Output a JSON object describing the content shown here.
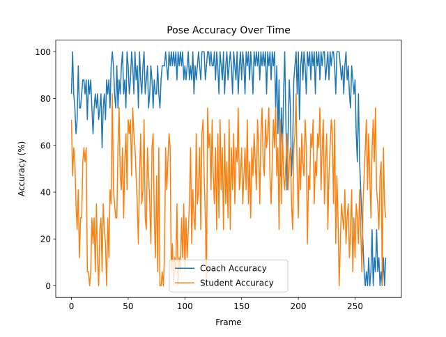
{
  "chart_data": {
    "type": "line",
    "title": "Pose Accuracy Over Time",
    "x_label": "Frame",
    "y_label": "Accuracy (%)",
    "x": [
      0,
      1,
      2,
      3,
      4,
      5,
      6,
      7,
      8,
      9,
      10,
      11,
      12,
      13,
      14,
      15,
      16,
      17,
      18,
      19,
      20,
      21,
      22,
      23,
      24,
      25,
      26,
      27,
      28,
      29,
      30,
      31,
      32,
      33,
      34,
      35,
      36,
      37,
      38,
      39,
      40,
      41,
      42,
      43,
      44,
      45,
      46,
      47,
      48,
      49,
      50,
      51,
      52,
      53,
      54,
      55,
      56,
      57,
      58,
      59,
      60,
      61,
      62,
      63,
      64,
      65,
      66,
      67,
      68,
      69,
      70,
      71,
      72,
      73,
      74,
      75,
      76,
      77,
      78,
      79,
      80,
      81,
      82,
      83,
      84,
      85,
      86,
      87,
      88,
      89,
      90,
      91,
      92,
      93,
      94,
      95,
      96,
      97,
      98,
      99,
      100,
      101,
      102,
      103,
      104,
      105,
      106,
      107,
      108,
      109,
      110,
      111,
      112,
      113,
      114,
      115,
      116,
      117,
      118,
      119,
      120,
      121,
      122,
      123,
      124,
      125,
      126,
      127,
      128,
      129,
      130,
      131,
      132,
      133,
      134,
      135,
      136,
      137,
      138,
      139,
      140,
      141,
      142,
      143,
      144,
      145,
      146,
      147,
      148,
      149,
      150,
      151,
      152,
      153,
      154,
      155,
      156,
      157,
      158,
      159,
      160,
      161,
      162,
      163,
      164,
      165,
      166,
      167,
      168,
      169,
      170,
      171,
      172,
      173,
      174,
      175,
      176,
      177,
      178,
      179,
      180,
      181,
      182,
      183,
      184,
      185,
      186,
      187,
      188,
      189,
      190,
      191,
      192,
      193,
      194,
      195,
      196,
      197,
      198,
      199,
      200,
      201,
      202,
      203,
      204,
      205,
      206,
      207,
      208,
      209,
      210,
      211,
      212,
      213,
      214,
      215,
      216,
      217,
      218,
      219,
      220,
      221,
      222,
      223,
      224,
      225,
      226,
      227,
      228,
      229,
      230,
      231,
      232,
      233,
      234,
      235,
      236,
      237,
      238,
      239,
      240,
      241,
      242,
      243,
      244,
      245,
      246,
      247,
      248,
      249,
      250,
      251,
      252,
      253,
      254,
      255,
      256,
      257,
      258,
      259,
      260,
      261,
      262,
      263,
      264,
      265,
      266,
      267,
      268,
      269,
      270,
      271,
      272,
      273,
      274,
      275,
      276,
      277
    ],
    "series": [
      {
        "name": "Coach Accuracy",
        "color": "#1f77b4",
        "values": [
          82,
          100,
          82,
          76,
          65,
          71,
          94,
          76,
          76,
          82,
          88,
          88,
          82,
          88,
          71,
          88,
          82,
          88,
          76,
          65,
          76,
          82,
          76,
          82,
          71,
          76,
          82,
          59,
          76,
          82,
          71,
          88,
          82,
          88,
          76,
          94,
          100,
          94,
          82,
          76,
          94,
          76,
          88,
          82,
          94,
          100,
          82,
          88,
          76,
          100,
          94,
          82,
          88,
          100,
          94,
          82,
          100,
          88,
          94,
          76,
          100,
          88,
          82,
          94,
          100,
          82,
          88,
          94,
          76,
          82,
          94,
          88,
          76,
          88,
          82,
          82,
          94,
          82,
          76,
          88,
          94,
          94,
          94,
          100,
          94,
          88,
          100,
          94,
          100,
          94,
          100,
          94,
          100,
          88,
          100,
          94,
          100,
          94,
          100,
          88,
          94,
          88,
          94,
          100,
          88,
          94,
          88,
          100,
          82,
          94,
          88,
          94,
          100,
          94,
          88,
          100,
          100,
          100,
          88,
          94,
          100,
          100,
          94,
          100,
          94,
          94,
          100,
          88,
          100,
          94,
          82,
          100,
          94,
          88,
          100,
          82,
          94,
          100,
          88,
          94,
          100,
          94,
          82,
          100,
          94,
          88,
          100,
          82,
          94,
          100,
          88,
          100,
          94,
          82,
          100,
          94,
          100,
          88,
          100,
          94,
          82,
          100,
          94,
          100,
          94,
          100,
          88,
          100,
          94,
          100,
          94,
          100,
          82,
          100,
          94,
          100,
          88,
          100,
          94,
          100,
          76,
          94,
          65,
          88,
          47,
          76,
          59,
          82,
          100,
          71,
          41,
          65,
          88,
          76,
          47,
          59,
          88,
          94,
          100,
          82,
          100,
          71,
          94,
          100,
          88,
          100,
          94,
          82,
          100,
          94,
          100,
          88,
          100,
          94,
          100,
          82,
          100,
          94,
          100,
          88,
          100,
          94,
          100,
          100,
          88,
          94,
          100,
          88,
          100,
          94,
          100,
          100,
          94,
          82,
          100,
          100,
          100,
          94,
          88,
          94,
          82,
          94,
          100,
          88,
          94,
          82,
          76,
          94,
          88,
          82,
          88,
          65,
          53,
          82,
          53,
          41,
          29,
          18,
          6,
          0,
          6,
          0,
          12,
          0,
          6,
          24,
          0,
          12,
          6,
          24,
          6,
          12,
          0,
          6,
          0,
          12,
          0,
          12
        ]
      },
      {
        "name": "Student Accuracy",
        "color": "#ff7f0e",
        "values": [
          71,
          47,
          59,
          53,
          35,
          24,
          41,
          12,
          29,
          29,
          53,
          59,
          53,
          59,
          6,
          6,
          0,
          6,
          29,
          18,
          29,
          6,
          35,
          12,
          0,
          24,
          29,
          6,
          35,
          24,
          18,
          0,
          29,
          12,
          41,
          35,
          82,
          41,
          35,
          29,
          29,
          59,
          76,
          47,
          41,
          59,
          29,
          53,
          65,
          41,
          71,
          65,
          71,
          47,
          76,
          65,
          59,
          47,
          35,
          18,
          47,
          65,
          35,
          41,
          71,
          29,
          24,
          59,
          47,
          35,
          18,
          59,
          65,
          29,
          12,
          47,
          6,
          59,
          0,
          0,
          6,
          0,
          12,
          59,
          41,
          53,
          65,
          59,
          6,
          18,
          0,
          12,
          6,
          35,
          0,
          12,
          6,
          29,
          12,
          35,
          6,
          29,
          12,
          24,
          35,
          59,
          18,
          41,
          29,
          24,
          65,
          35,
          41,
          59,
          24,
          65,
          71,
          47,
          29,
          0,
          76,
          59,
          65,
          41,
          71,
          47,
          35,
          59,
          24,
          65,
          29,
          71,
          41,
          59,
          24,
          65,
          35,
          53,
          29,
          71,
          24,
          59,
          41,
          65,
          35,
          59,
          53,
          76,
          41,
          47,
          59,
          35,
          47,
          59,
          41,
          71,
          35,
          53,
          29,
          59,
          47,
          65,
          53,
          41,
          71,
          59,
          35,
          65,
          76,
          53,
          47,
          71,
          59,
          65,
          76,
          47,
          35,
          53,
          71,
          59,
          76,
          47,
          59,
          24,
          71,
          35,
          65,
          47,
          41,
          53,
          65,
          41,
          53,
          59,
          35,
          24,
          59,
          65,
          82,
          47,
          29,
          59,
          41,
          65,
          53,
          47,
          71,
          59,
          18,
          47,
          41,
          65,
          59,
          71,
          35,
          53,
          47,
          65,
          59,
          76,
          41,
          59,
          71,
          35,
          53,
          65,
          24,
          47,
          59,
          71,
          65,
          35,
          71,
          18,
          47,
          29,
          0,
          18,
          35,
          29,
          24,
          41,
          18,
          29,
          35,
          12,
          24,
          41,
          6,
          29,
          12,
          35,
          29,
          18,
          41,
          24,
          6,
          35,
          47,
          59,
          71,
          41,
          65,
          47,
          29,
          59,
          71,
          53,
          76,
          41,
          35,
          24,
          47,
          53,
          0,
          59,
          35,
          29
        ]
      }
    ],
    "xlim": [
      -13.85,
      290.85
    ],
    "ylim": [
      -5,
      105
    ],
    "xticks": [
      0,
      50,
      100,
      150,
      200,
      250
    ],
    "yticks": [
      0,
      20,
      40,
      60,
      80,
      100
    ],
    "legend": "lower center"
  }
}
